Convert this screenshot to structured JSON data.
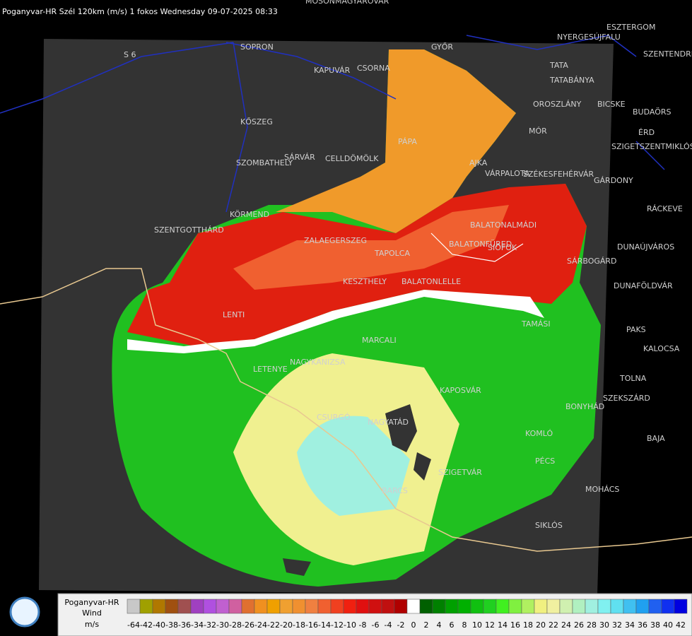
{
  "header": {
    "title": "Poganyvar-HR Szél 120km (m/s) 1 fokos Wednesday 09-07-2025 08:33"
  },
  "places": [
    "MOSONMAGYARÓVÁR",
    "SOPRON",
    "KAPUVÁR",
    "CSORNA",
    "GYŐR",
    "TATA",
    "TATABÁNYA",
    "ESZTERGOM",
    "NYERGESÚJFALU",
    "SZENTENDRE",
    "OROSZLÁNY",
    "BICSKE",
    "BUDAÖRS",
    "ÉRD",
    "SZIGETSZENTMIKLÓS",
    "PÁPA",
    "MÓR",
    "KŐSZEG",
    "SZOMBATHELY",
    "SÁRVÁR",
    "CELLDÖMÖLK",
    "AJKA",
    "VÁRPALOTA",
    "SZÉKESFEHÉRVÁR",
    "GÁRDONY",
    "RÁCKEVE",
    "KÖRMEND",
    "SZENTGOTTHÁRD",
    "ZALAEGERSZEG",
    "TAPOLCA",
    "BALATONALMÁDI",
    "BALATONFÜRED",
    "SIÓFOK",
    "DUNAÚJVÁROS",
    "SÁRBOGÁRD",
    "KESZTHELY",
    "BALATONLELLE",
    "DUNAFÖLDVÁR",
    "LENTI",
    "TAMÁSI",
    "PAKS",
    "KALOCSA",
    "MARCALI",
    "LETENYE",
    "NAGYKANIZSA",
    "KAPOSVÁR",
    "TOLNA",
    "SZEKSZÁRD",
    "BONYHÁD",
    "CSURGÓ",
    "NAGYATÁD",
    "KOMLÓ",
    "BAJA",
    "PÉCS",
    "SZIGETVÁR",
    "MOHÁCS",
    "BARCS",
    "SIKLÓS",
    "S 6"
  ],
  "legend": {
    "name": "Poganyvar-HR",
    "quantity": "Wind",
    "unit": "m/s",
    "values": [
      -64,
      -42,
      -40,
      -38,
      -36,
      -34,
      -32,
      -30,
      -28,
      -26,
      -24,
      -22,
      -20,
      -18,
      -16,
      -14,
      -12,
      -10,
      -8,
      -6,
      -4,
      -2,
      0,
      2,
      4,
      6,
      8,
      10,
      12,
      14,
      16,
      18,
      20,
      22,
      24,
      26,
      28,
      30,
      32,
      34,
      36,
      38,
      40,
      42
    ],
    "colors": [
      "#c8c8c8",
      "#a0a000",
      "#b07800",
      "#a05010",
      "#a05050",
      "#a040c0",
      "#b050e0",
      "#c060d0",
      "#d060a0",
      "#e07030",
      "#f09020",
      "#f0a000",
      "#f0a030",
      "#f09030",
      "#f08040",
      "#f06030",
      "#f04020",
      "#f02010",
      "#e01010",
      "#d01010",
      "#c01010",
      "#b00000",
      "#ffffff",
      "#006000",
      "#008000",
      "#00a000",
      "#00b000",
      "#10c010",
      "#20d020",
      "#40f020",
      "#80f040",
      "#b0f060",
      "#f0f080",
      "#f0f0a0",
      "#d0f0b0",
      "#b0f0c0",
      "#a0f0e0",
      "#80f0f0",
      "#60e0f0",
      "#40c0f0",
      "#20a0f0",
      "#2060f0",
      "#1030f0",
      "#0000e0"
    ]
  }
}
